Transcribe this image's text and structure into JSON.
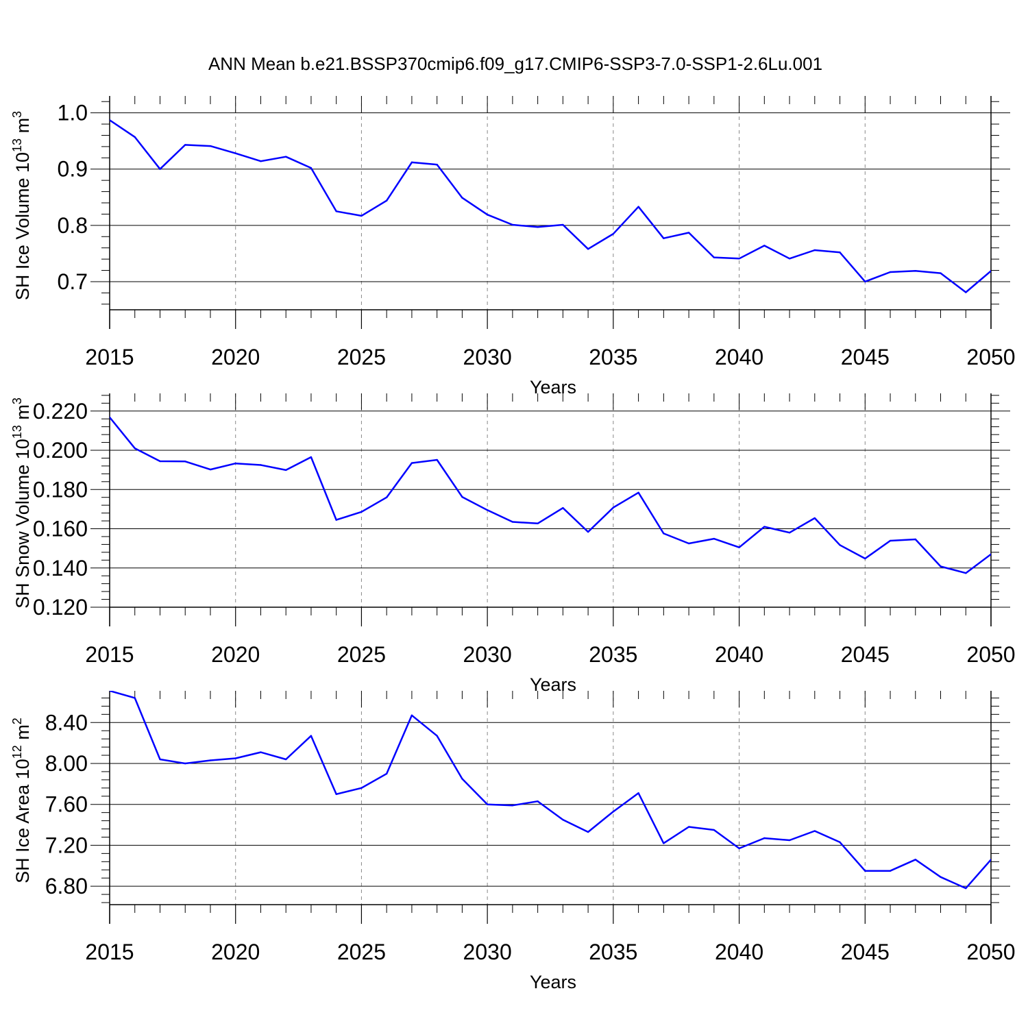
{
  "title": "ANN Mean b.e21.BSSP370cmip6.f09_g17.CMIP6-SSP3-7.0-SSP1-2.6Lu.001",
  "line_color": "#0000ff",
  "grid_color": "#888888",
  "chart_data": [
    {
      "type": "line",
      "title": "",
      "xlabel": "Years",
      "ylabel": "SH Ice Volume 10",
      "ylabel_exp": "13",
      "ylabel_unit": " m",
      "ylabel_unit_exp": "3",
      "xlim": [
        2015,
        2050
      ],
      "ylim": [
        0.65,
        1.03
      ],
      "yticks": [
        0.7,
        0.8,
        0.9,
        1.0
      ],
      "ytick_labels": [
        "0.7",
        "0.8",
        "0.9",
        "1.0"
      ],
      "xticks": [
        2015,
        2020,
        2025,
        2030,
        2035,
        2040,
        2045,
        2050
      ],
      "xtick_labels": [
        "2015",
        "2020",
        "2025",
        "2030",
        "2035",
        "2040",
        "2045",
        "2050"
      ],
      "x": [
        2015,
        2016,
        2017,
        2018,
        2019,
        2020,
        2021,
        2022,
        2023,
        2024,
        2025,
        2026,
        2027,
        2028,
        2029,
        2030,
        2031,
        2032,
        2033,
        2034,
        2035,
        2036,
        2037,
        2038,
        2039,
        2040,
        2041,
        2042,
        2043,
        2044,
        2045,
        2046,
        2047,
        2048,
        2049,
        2050
      ],
      "series": [
        {
          "values": [
            0.987,
            0.957,
            0.9,
            0.943,
            0.941,
            0.928,
            0.914,
            0.922,
            0.902,
            0.825,
            0.817,
            0.844,
            0.912,
            0.908,
            0.849,
            0.819,
            0.801,
            0.797,
            0.801,
            0.758,
            0.785,
            0.833,
            0.777,
            0.787,
            0.743,
            0.741,
            0.764,
            0.741,
            0.756,
            0.752,
            0.7,
            0.717,
            0.719,
            0.715,
            0.681,
            0.719
          ]
        }
      ]
    },
    {
      "type": "line",
      "title": "",
      "xlabel": "Years",
      "ylabel": "SH Snow Volume 10",
      "ylabel_exp": "13",
      "ylabel_unit": " m",
      "ylabel_unit_exp": "3",
      "xlim": [
        2015,
        2050
      ],
      "ylim": [
        0.12,
        0.229
      ],
      "yticks": [
        0.12,
        0.14,
        0.16,
        0.18,
        0.2,
        0.22
      ],
      "ytick_labels": [
        "0.120",
        "0.140",
        "0.160",
        "0.180",
        "0.200",
        "0.220"
      ],
      "xticks": [
        2015,
        2020,
        2025,
        2030,
        2035,
        2040,
        2045,
        2050
      ],
      "xtick_labels": [
        "2015",
        "2020",
        "2025",
        "2030",
        "2035",
        "2040",
        "2045",
        "2050"
      ],
      "x": [
        2015,
        2016,
        2017,
        2018,
        2019,
        2020,
        2021,
        2022,
        2023,
        2024,
        2025,
        2026,
        2027,
        2028,
        2029,
        2030,
        2031,
        2032,
        2033,
        2034,
        2035,
        2036,
        2037,
        2038,
        2039,
        2040,
        2041,
        2042,
        2043,
        2044,
        2045,
        2046,
        2047,
        2048,
        2049,
        2050
      ],
      "series": [
        {
          "values": [
            0.2168,
            0.201,
            0.1944,
            0.1943,
            0.1902,
            0.1933,
            0.1925,
            0.1899,
            0.1965,
            0.1645,
            0.1686,
            0.176,
            0.1935,
            0.1951,
            0.1762,
            0.1695,
            0.1635,
            0.1627,
            0.1706,
            0.1584,
            0.1708,
            0.1784,
            0.1576,
            0.1525,
            0.1549,
            0.1505,
            0.161,
            0.158,
            0.1654,
            0.1517,
            0.1448,
            0.1539,
            0.1546,
            0.1408,
            0.1374,
            0.147
          ]
        }
      ]
    },
    {
      "type": "line",
      "title": "",
      "xlabel": "Years",
      "ylabel": "SH Ice Area 10",
      "ylabel_exp": "12",
      "ylabel_unit": " m",
      "ylabel_unit_exp": "2",
      "xlim": [
        2015,
        2050
      ],
      "ylim": [
        6.62,
        8.71
      ],
      "yticks": [
        6.8,
        7.2,
        7.6,
        8.0,
        8.4
      ],
      "ytick_labels": [
        "6.80",
        "7.20",
        "7.60",
        "8.00",
        "8.40"
      ],
      "xticks": [
        2015,
        2020,
        2025,
        2030,
        2035,
        2040,
        2045,
        2050
      ],
      "xtick_labels": [
        "2015",
        "2020",
        "2025",
        "2030",
        "2035",
        "2040",
        "2045",
        "2050"
      ],
      "x": [
        2015,
        2016,
        2017,
        2018,
        2019,
        2020,
        2021,
        2022,
        2023,
        2024,
        2025,
        2026,
        2027,
        2028,
        2029,
        2030,
        2031,
        2032,
        2033,
        2034,
        2035,
        2036,
        2037,
        2038,
        2039,
        2040,
        2041,
        2042,
        2043,
        2044,
        2045,
        2046,
        2047,
        2048,
        2049,
        2050
      ],
      "series": [
        {
          "values": [
            8.71,
            8.64,
            8.04,
            8.0,
            8.03,
            8.05,
            8.11,
            8.04,
            8.27,
            7.7,
            7.76,
            7.9,
            8.47,
            8.27,
            7.85,
            7.6,
            7.59,
            7.63,
            7.45,
            7.33,
            7.53,
            7.71,
            7.22,
            7.38,
            7.35,
            7.17,
            7.27,
            7.25,
            7.34,
            7.23,
            6.95,
            6.95,
            7.06,
            6.89,
            6.78,
            7.06
          ]
        }
      ]
    }
  ]
}
